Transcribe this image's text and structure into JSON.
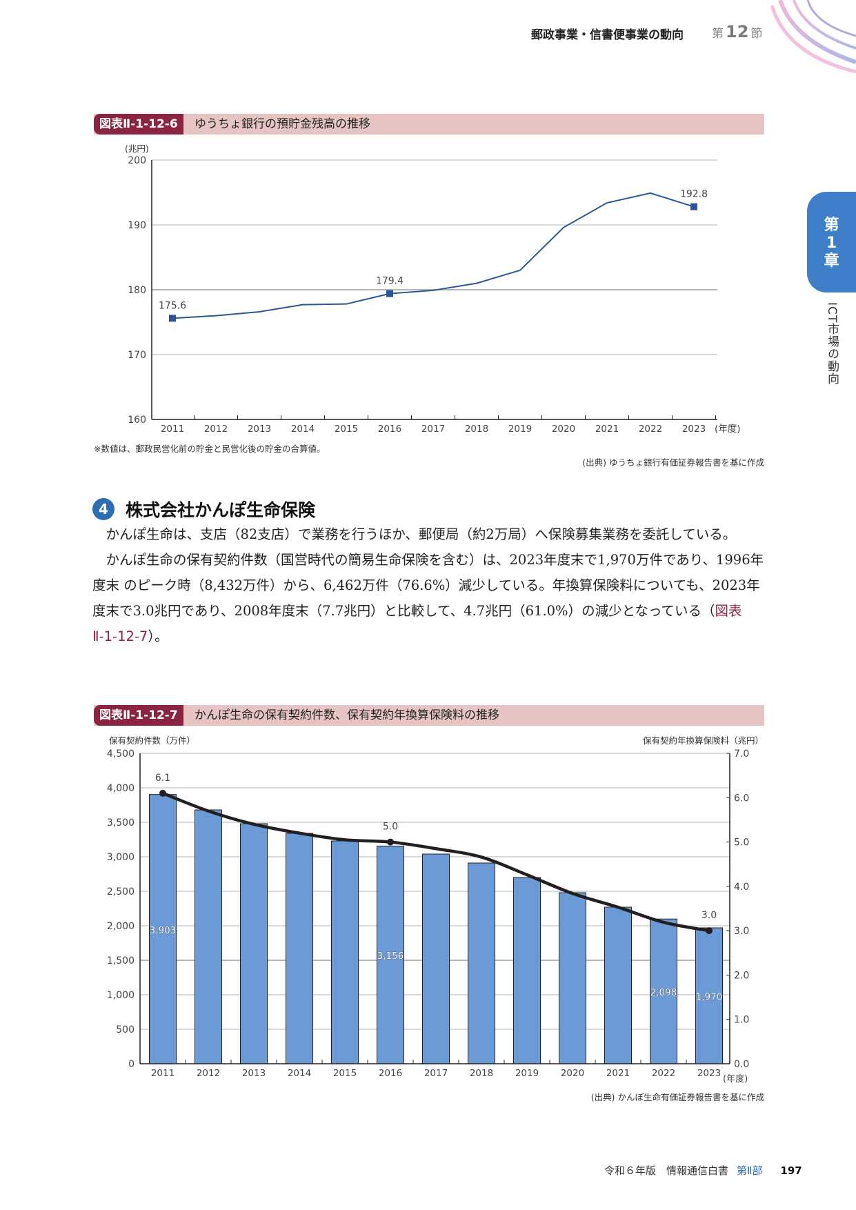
{
  "header": {
    "section_title": "郵政事業・信書便事業の動向",
    "section_prefix": "第",
    "section_number": "12",
    "section_suffix": "節"
  },
  "chapter_tab": {
    "label_line1": "第",
    "label_line2": "1",
    "label_line3": "章",
    "side_title": "ICT市場の動向"
  },
  "figure1": {
    "tag": "図表Ⅱ-1-12-6",
    "title": "ゆうちょ銀行の預貯金残高の推移",
    "unit": "(兆円)",
    "x_unit": "(年度)",
    "note": "※数値は、郵政民営化前の貯金と民営化後の貯金の合算値。",
    "source": "(出典) ゆうちょ銀行有価証券報告書を基に作成"
  },
  "section4": {
    "number": "4",
    "title": "株式会社かんぽ生命保険",
    "paragraphs": [
      "かんぽ生命は、支店（82支店）で業務を行うほか、郵便局（約2万局）へ保険募集業務を委託している。",
      "かんぽ生命の保有契約件数（国営時代の簡易生命保険を含む）は、2023年度末で1,970万件であり、1996年度末 のピーク時（8,432万件）から、6,462万件（76.6%）減少している。年換算保険料についても、2023年度末で3.0兆円であり、2008年度末（7.7兆円）と比較して、4.7兆円（61.0%）の減少となっている（"
    ],
    "paragraph2_ref": "図表Ⅱ-1-12-7",
    "paragraph2_end": "）。"
  },
  "figure2": {
    "tag": "図表Ⅱ-1-12-7",
    "title": "かんぽ生命の保有契約件数、保有契約年換算保険料の推移",
    "left_axis_label": "保有契約件数（万件）",
    "right_axis_label": "保有契約年換算保険料（兆円）",
    "x_unit": "(年度)",
    "source": "(出典) かんぽ生命有価証券報告書を基に作成"
  },
  "footer": {
    "publication": "令和６年版　情報通信白書",
    "part": "第Ⅱ部",
    "page": "197"
  },
  "colors": {
    "figure_tag": "#8b2440",
    "figure_header_bg": "#e6c4c4",
    "chapter_tab": "#3f7fca",
    "line1": "#2a5599",
    "bars": "#6b9ad6",
    "line2": "#231f20"
  },
  "chart_data": [
    {
      "type": "line",
      "title": "ゆうちょ銀行の預貯金残高の推移",
      "xlabel": "(年度)",
      "ylabel": "(兆円)",
      "ylim": [
        160,
        200
      ],
      "yticks": [
        160,
        170,
        180,
        190,
        200
      ],
      "grid": true,
      "categories": [
        "2011",
        "2012",
        "2013",
        "2014",
        "2015",
        "2016",
        "2017",
        "2018",
        "2019",
        "2020",
        "2021",
        "2022",
        "2023"
      ],
      "values": [
        175.6,
        176.0,
        176.6,
        177.7,
        177.8,
        179.4,
        179.9,
        181.0,
        183.0,
        189.6,
        193.4,
        194.9,
        192.8
      ],
      "labeled_points": {
        "2011": "175.6",
        "2016": "179.4",
        "2023": "192.8"
      },
      "annotations": [
        "※数値は、郵政民営化前の貯金と民営化後の貯金の合算値。"
      ]
    },
    {
      "type": "bar+line",
      "title": "かんぽ生命の保有契約件数、保有契約年換算保険料の推移",
      "xlabel": "(年度)",
      "categories": [
        "2011",
        "2012",
        "2013",
        "2014",
        "2015",
        "2016",
        "2017",
        "2018",
        "2019",
        "2020",
        "2021",
        "2022",
        "2023"
      ],
      "series": [
        {
          "name": "保有契約件数（万件）",
          "type": "bar",
          "axis": "left",
          "values": [
            3903,
            3680,
            3480,
            3340,
            3230,
            3156,
            3040,
            2910,
            2700,
            2480,
            2270,
            2098,
            1970
          ],
          "labeled_points": {
            "2011": "3,903",
            "2016": "3,156",
            "2022": "2,098",
            "2023": "1,970"
          }
        },
        {
          "name": "保有契約年換算保険料（兆円）",
          "type": "line",
          "axis": "right",
          "values": [
            6.1,
            5.7,
            5.4,
            5.2,
            5.05,
            5.0,
            4.85,
            4.66,
            4.26,
            3.84,
            3.53,
            3.19,
            3.0
          ],
          "labeled_points": {
            "2011": "6.1",
            "2016": "5.0",
            "2023": "3.0"
          }
        }
      ],
      "ylim_left": [
        0,
        4500
      ],
      "yticks_left": [
        "0",
        "500",
        "1,000",
        "1,500",
        "2,000",
        "2,500",
        "3,000",
        "3,500",
        "4,000",
        "4,500"
      ],
      "ylim_right": [
        0,
        7
      ],
      "yticks_right": [
        "0.0",
        "1.0",
        "2.0",
        "3.0",
        "4.0",
        "5.0",
        "6.0",
        "7.0"
      ],
      "grid": true
    }
  ]
}
